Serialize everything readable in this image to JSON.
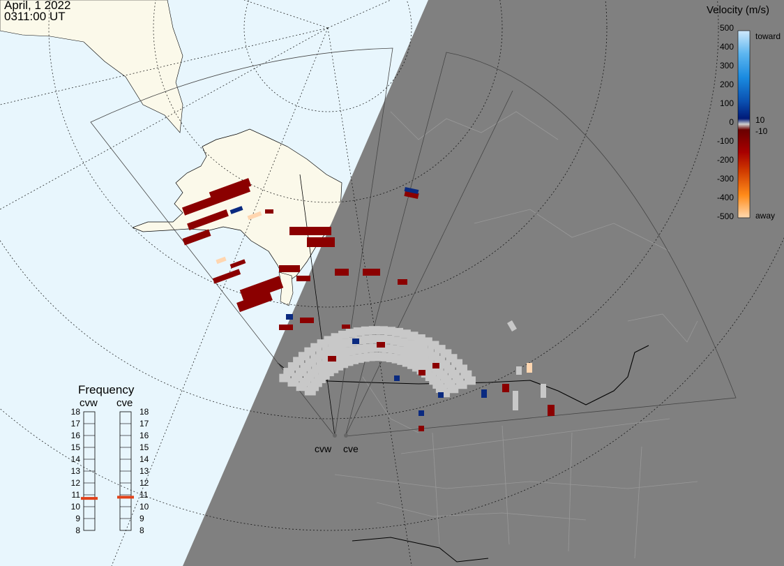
{
  "timestamp": {
    "date": "April, 1 2022",
    "time": "0311:00 UT"
  },
  "colors": {
    "ocean": "#e8f6fd",
    "land_day": "#fbf9ea",
    "night": "#808080",
    "scatter_red": "#8b0000",
    "ground_scatter": "#c8c8c8",
    "frequency_marker": "#e0421a"
  },
  "velocity_legend": {
    "title": "Velocity (m/s)",
    "ticks": [
      "500",
      "400",
      "300",
      "200",
      "100",
      "0",
      "-100",
      "-200",
      "-300",
      "-400",
      "-500"
    ],
    "upper_label": "10",
    "lower_label": "-10",
    "toward_label": "toward",
    "away_label": "away"
  },
  "frequency_panel": {
    "title": "Frequency",
    "radars": [
      {
        "name": "cvw",
        "current_mhz": 10.7
      },
      {
        "name": "cve",
        "current_mhz": 10.8
      }
    ],
    "ticks": [
      "18",
      "17",
      "16",
      "15",
      "14",
      "13",
      "12",
      "11",
      "10",
      "9",
      "8"
    ]
  },
  "radar_sites": [
    "cvw",
    "cve"
  ]
}
